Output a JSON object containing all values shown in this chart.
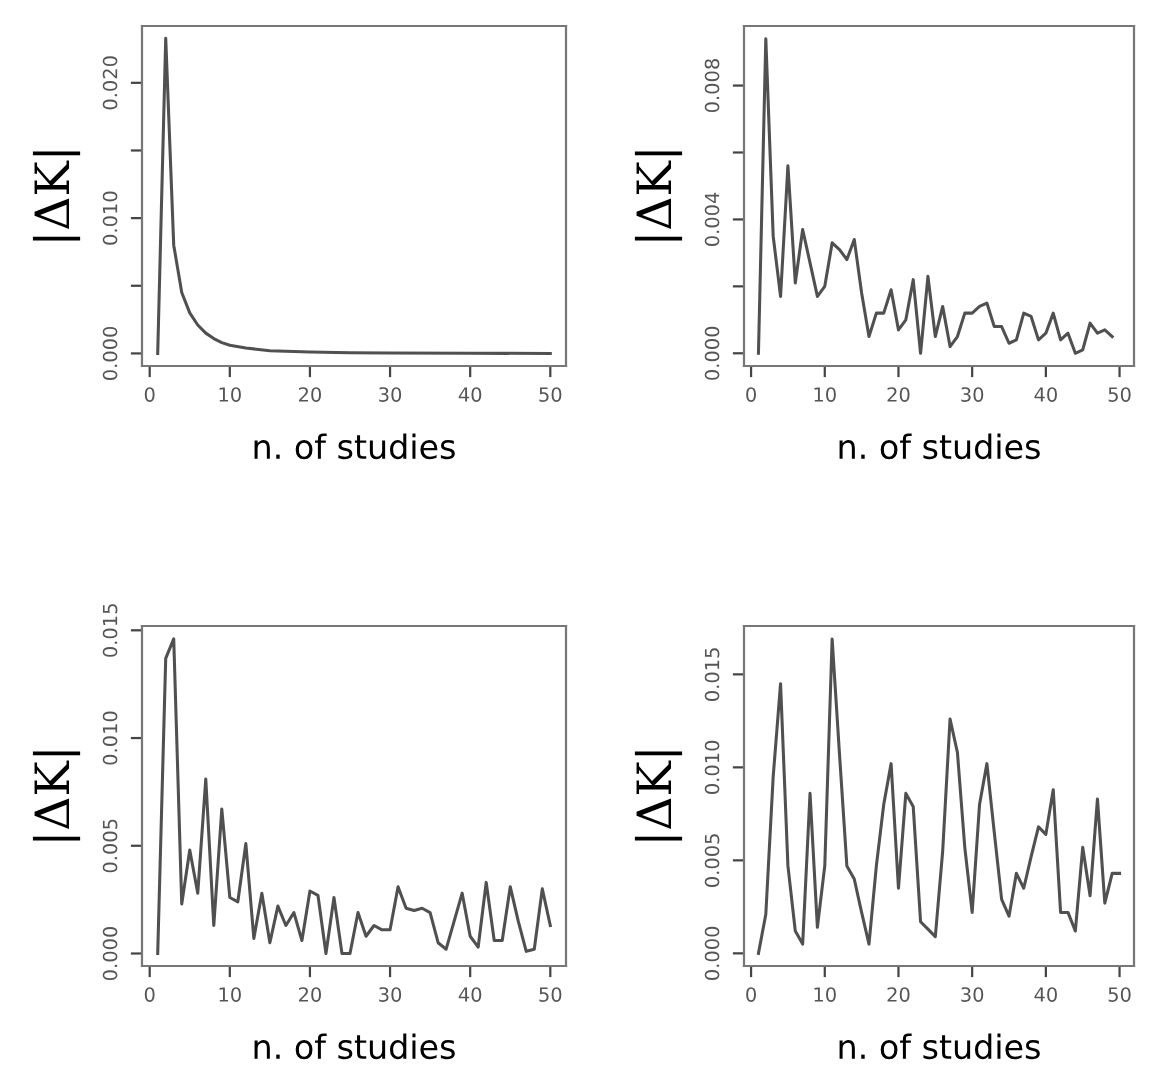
{
  "chart_data": [
    {
      "type": "line",
      "xlabel": "n. of studies",
      "ylabel": "|ΔK|",
      "color": "#505050",
      "grid": false,
      "x": [
        1,
        2,
        3,
        4,
        5,
        6,
        7,
        8,
        9,
        10,
        12,
        15,
        20,
        25,
        30,
        40,
        50
      ],
      "values": [
        0,
        0.0233,
        0.008,
        0.0045,
        0.003,
        0.0021,
        0.0015,
        0.0011,
        0.0008,
        0.0006,
        0.0004,
        0.0002,
        0.0001,
        5e-05,
        3e-05,
        1e-05,
        0
      ],
      "xlim": [
        -0.96,
        51.96
      ],
      "ylim": [
        -0.00093,
        0.0242
      ],
      "xticks": [
        0,
        10,
        20,
        30,
        40,
        50
      ],
      "yticks": [
        {
          "value": 0,
          "label": "0.000"
        },
        {
          "value": 0.005,
          "label": null
        },
        {
          "value": 0.01,
          "label": "0.010"
        },
        {
          "value": 0.015,
          "label": null
        },
        {
          "value": 0.02,
          "label": "0.020"
        }
      ]
    },
    {
      "type": "line",
      "xlabel": "n. of studies",
      "ylabel": "|ΔK|",
      "color": "#505050",
      "grid": false,
      "x": [
        1,
        2,
        3,
        4,
        5,
        6,
        7,
        8,
        9,
        10,
        11,
        12,
        13,
        14,
        15,
        16,
        17,
        18,
        19,
        20,
        21,
        22,
        23,
        24,
        25,
        26,
        27,
        28,
        29,
        30,
        31,
        32,
        33,
        34,
        35,
        36,
        37,
        38,
        39,
        40,
        41,
        42,
        43,
        44,
        45,
        46,
        47,
        48,
        49
      ],
      "values": [
        0,
        0.0094,
        0.0035,
        0.0017,
        0.0056,
        0.0021,
        0.0037,
        0.0027,
        0.0017,
        0.002,
        0.0033,
        0.0031,
        0.0028,
        0.0034,
        0.0018,
        0.0005,
        0.0012,
        0.0012,
        0.0019,
        0.0007,
        0.001,
        0.0022,
        0,
        0.0023,
        0.0005,
        0.0014,
        0.0002,
        0.0005,
        0.0012,
        0.0012,
        0.0014,
        0.0015,
        0.0008,
        0.0008,
        0.0003,
        0.0004,
        0.0012,
        0.0011,
        0.0004,
        0.0006,
        0.0012,
        0.0004,
        0.0006,
        0,
        0.0001,
        0.0009,
        0.0006,
        0.0007,
        0.0005
      ],
      "xlim": [
        -0.96,
        51.96
      ],
      "ylim": [
        -0.00038,
        0.00978
      ],
      "xticks": [
        0,
        10,
        20,
        30,
        40,
        50
      ],
      "yticks": [
        {
          "value": 0,
          "label": "0.000"
        },
        {
          "value": 0.002,
          "label": null
        },
        {
          "value": 0.004,
          "label": "0.004"
        },
        {
          "value": 0.006,
          "label": null
        },
        {
          "value": 0.008,
          "label": "0.008"
        }
      ]
    },
    {
      "type": "line",
      "xlabel": "n. of studies",
      "ylabel": "|ΔK|",
      "color": "#505050",
      "grid": false,
      "x": [
        1,
        2,
        3,
        4,
        5,
        6,
        7,
        8,
        9,
        10,
        11,
        12,
        13,
        14,
        15,
        16,
        17,
        18,
        19,
        20,
        21,
        22,
        23,
        24,
        25,
        26,
        27,
        28,
        29,
        30,
        31,
        32,
        33,
        34,
        35,
        36,
        37,
        38,
        39,
        40,
        41,
        42,
        43,
        44,
        45,
        46,
        47,
        48,
        49,
        50
      ],
      "values": [
        0,
        0.0137,
        0.0146,
        0.0023,
        0.0048,
        0.0028,
        0.0081,
        0.0013,
        0.0067,
        0.0026,
        0.0024,
        0.0051,
        0.0007,
        0.0028,
        0.0005,
        0.0022,
        0.0013,
        0.0019,
        0.0006,
        0.0029,
        0.0027,
        0,
        0.0026,
        0,
        0,
        0.0019,
        0.0008,
        0.0013,
        0.0011,
        0.0011,
        0.0031,
        0.0021,
        0.002,
        0.0021,
        0.0019,
        0.0005,
        0.0002,
        0.0015,
        0.0028,
        0.0008,
        0.0003,
        0.0033,
        0.0006,
        0.0006,
        0.0031,
        0.0015,
        0.0001,
        0.0002,
        0.003,
        0.0013
      ],
      "xlim": [
        -0.96,
        51.96
      ],
      "ylim": [
        -0.00058,
        0.0152
      ],
      "xticks": [
        0,
        10,
        20,
        30,
        40,
        50
      ],
      "yticks": [
        {
          "value": 0,
          "label": "0.000"
        },
        {
          "value": 0.005,
          "label": "0.005"
        },
        {
          "value": 0.01,
          "label": "0.010"
        },
        {
          "value": 0.015,
          "label": "0.015"
        }
      ]
    },
    {
      "type": "line",
      "xlabel": "n. of studies",
      "ylabel": "|ΔK|",
      "color": "#505050",
      "grid": false,
      "x": [
        1,
        2,
        3,
        4,
        5,
        6,
        7,
        8,
        9,
        10,
        11,
        12,
        13,
        14,
        15,
        16,
        17,
        18,
        19,
        20,
        21,
        22,
        23,
        24,
        25,
        26,
        27,
        28,
        29,
        30,
        31,
        32,
        33,
        34,
        35,
        36,
        37,
        38,
        39,
        40,
        41,
        42,
        43,
        44,
        45,
        46,
        47,
        48,
        49,
        50
      ],
      "values": [
        0,
        0.0021,
        0.0095,
        0.0145,
        0.0047,
        0.0012,
        0.0005,
        0.0086,
        0.0014,
        0.0047,
        0.0169,
        0.0107,
        0.0047,
        0.004,
        0.0022,
        0.0005,
        0.0047,
        0.008,
        0.0102,
        0.0035,
        0.0086,
        0.0079,
        0.0017,
        0.0013,
        0.0009,
        0.0055,
        0.0126,
        0.0108,
        0.0057,
        0.0022,
        0.008,
        0.0102,
        0.0065,
        0.0029,
        0.002,
        0.0043,
        0.0035,
        0.0052,
        0.0068,
        0.0064,
        0.0088,
        0.0022,
        0.0022,
        0.0012,
        0.0057,
        0.0031,
        0.0083,
        0.0027,
        0.0043,
        0.0043
      ],
      "xlim": [
        -0.96,
        51.96
      ],
      "ylim": [
        -0.00068,
        0.0176
      ],
      "xticks": [
        0,
        10,
        20,
        30,
        40,
        50
      ],
      "yticks": [
        {
          "value": 0,
          "label": "0.000"
        },
        {
          "value": 0.005,
          "label": "0.005"
        },
        {
          "value": 0.01,
          "label": "0.010"
        },
        {
          "value": 0.015,
          "label": "0.015"
        }
      ]
    }
  ]
}
